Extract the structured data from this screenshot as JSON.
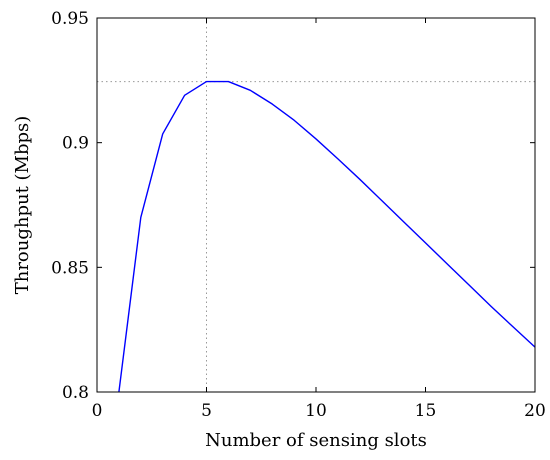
{
  "chart_data": {
    "type": "line",
    "title": "",
    "xlabel": "Number of sensing slots",
    "ylabel": "Throughput (Mbps)",
    "xlim": [
      0,
      20
    ],
    "ylim": [
      0.8,
      0.95
    ],
    "xticks": [
      0,
      5,
      10,
      15,
      20
    ],
    "yticks": [
      0.8,
      0.85,
      0.9,
      0.95
    ],
    "xtick_labels": [
      "0",
      "5",
      "10",
      "15",
      "20"
    ],
    "ytick_labels": [
      "0.8",
      "0.85",
      "0.9",
      "0.95"
    ],
    "grid": false,
    "legend": "none",
    "series": [
      {
        "color": "#0000ff",
        "x": [
          1,
          2,
          3,
          4,
          5,
          6,
          7,
          8,
          9,
          10,
          11,
          12,
          13,
          14,
          15,
          16,
          17,
          18,
          19,
          20
        ],
        "y": [
          0.8,
          0.87,
          0.9035,
          0.919,
          0.9245,
          0.9245,
          0.921,
          0.9155,
          0.909,
          0.9015,
          0.8935,
          0.8853,
          0.8768,
          0.8683,
          0.8598,
          0.8513,
          0.8428,
          0.8343,
          0.8261,
          0.818
        ]
      }
    ],
    "reference_lines": [
      {
        "orientation": "vertical",
        "value": 5,
        "style": "dotted",
        "color": "#999999"
      },
      {
        "orientation": "horizontal",
        "value": 0.9245,
        "style": "dotted",
        "color": "#999999"
      }
    ]
  }
}
